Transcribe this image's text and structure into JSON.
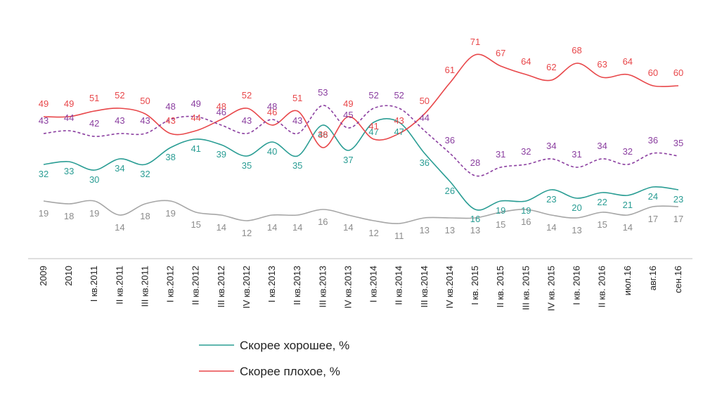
{
  "chart_data": {
    "type": "line",
    "categories": [
      "2009",
      "2010",
      "I кв.2011",
      "II кв.2011",
      "III кв.2011",
      "I кв.2012",
      "II кв.2012",
      "III кв.2012",
      "IV кв.2012",
      "I кв.2013",
      "II кв.2013",
      "III кв.2013",
      "IV кв.2013",
      "I кв.2014",
      "II кв.2014",
      "III кв.2014",
      "IV кв.2014",
      "I кв. 2015",
      "II кв. 2015",
      "III кв. 2015",
      "IV кв. 2015",
      "I кв. 2016",
      "II кв. 2016",
      "июл.16",
      "авг.16",
      "сен.16"
    ],
    "series": [
      {
        "name": "Скорее хорошее, %",
        "color": "#2a9d94",
        "dashed": false,
        "values": [
          32,
          33,
          30,
          34,
          32,
          38,
          41,
          39,
          35,
          40,
          35,
          46,
          37,
          47,
          47,
          36,
          26,
          16,
          19,
          19,
          23,
          20,
          22,
          21,
          24,
          23
        ]
      },
      {
        "name": "Скорее плохое, %",
        "color": "#e8474a",
        "dashed": false,
        "values": [
          49,
          49,
          51,
          52,
          50,
          43,
          44,
          48,
          52,
          46,
          51,
          38,
          49,
          41,
          43,
          50,
          61,
          71,
          67,
          64,
          62,
          68,
          63,
          64,
          60,
          60
        ]
      },
      {
        "name": "",
        "color": "#8b3fa0",
        "dashed": true,
        "values": [
          43,
          44,
          42,
          43,
          43,
          48,
          49,
          46,
          43,
          48,
          43,
          53,
          45,
          52,
          52,
          44,
          36,
          28,
          31,
          32,
          34,
          31,
          34,
          32,
          36,
          35
        ]
      },
      {
        "name": "",
        "color": "#a6a6a6",
        "dashed": false,
        "values": [
          19,
          18,
          19,
          14,
          18,
          19,
          15,
          14,
          12,
          14,
          14,
          16,
          14,
          12,
          11,
          13,
          13,
          13,
          15,
          16,
          14,
          13,
          15,
          14,
          17,
          17
        ]
      }
    ],
    "legend": [
      "Скорее хорошее,  %",
      "Скорее плохое,  %"
    ],
    "legend_colors": [
      "#2a9d94",
      "#e8474a"
    ],
    "legend_position": "bottom",
    "ylim": [
      0,
      80
    ],
    "grid": false
  }
}
